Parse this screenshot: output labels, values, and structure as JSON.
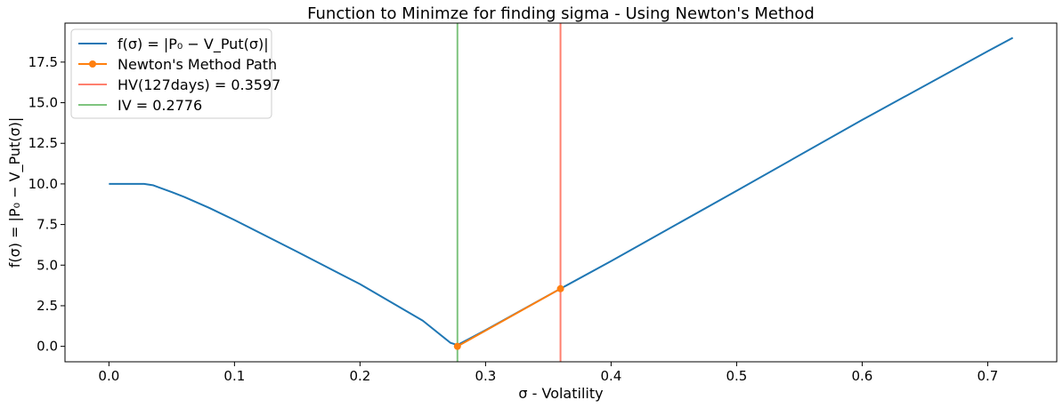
{
  "chart_data": {
    "type": "line",
    "title": "Function to Minimze for finding sigma - Using Newton's Method",
    "xlabel": "σ - Volatility",
    "ylabel": "f(σ) = |P₀ − V_Put(σ)|",
    "xlim": [
      -0.035,
      0.755
    ],
    "ylim": [
      -0.95,
      19.9
    ],
    "x_ticks": [
      0.0,
      0.1,
      0.2,
      0.3,
      0.4,
      0.5,
      0.6,
      0.7
    ],
    "x_tick_labels": [
      "0.0",
      "0.1",
      "0.2",
      "0.3",
      "0.4",
      "0.5",
      "0.6",
      "0.7"
    ],
    "y_ticks": [
      0.0,
      2.5,
      5.0,
      7.5,
      10.0,
      12.5,
      15.0,
      17.5
    ],
    "y_tick_labels": [
      "0.0",
      "2.5",
      "5.0",
      "7.5",
      "10.0",
      "12.5",
      "15.0",
      "17.5"
    ],
    "grid": false,
    "legend_position": "top-left",
    "series": [
      {
        "name": "f(σ) = |P₀ − V_Put(σ)|",
        "kind": "line",
        "color": "#1f77b4",
        "x": [
          0.0,
          0.02,
          0.028,
          0.035,
          0.04,
          0.05,
          0.06,
          0.08,
          0.1,
          0.15,
          0.2,
          0.25,
          0.272,
          0.2776,
          0.29,
          0.3,
          0.3597,
          0.4,
          0.5,
          0.6,
          0.7,
          0.72
        ],
        "y": [
          10.0,
          10.0,
          10.0,
          9.92,
          9.78,
          9.5,
          9.2,
          8.52,
          7.78,
          5.82,
          3.83,
          1.58,
          0.22,
          0.08,
          0.59,
          1.0,
          3.55,
          5.25,
          9.58,
          13.94,
          18.17,
          19.0
        ]
      },
      {
        "name": "Newton's Method Path",
        "kind": "line-markers",
        "color": "#ff7f0e",
        "x": [
          0.3597,
          0.2776
        ],
        "y": [
          3.55,
          0.0
        ]
      },
      {
        "name": "HV(127days) = 0.3597",
        "kind": "vline",
        "color": "#ff7f6e",
        "x": 0.3597
      },
      {
        "name": "IV = 0.2776",
        "kind": "vline",
        "color": "#7fc47f",
        "x": 0.2776
      }
    ]
  }
}
